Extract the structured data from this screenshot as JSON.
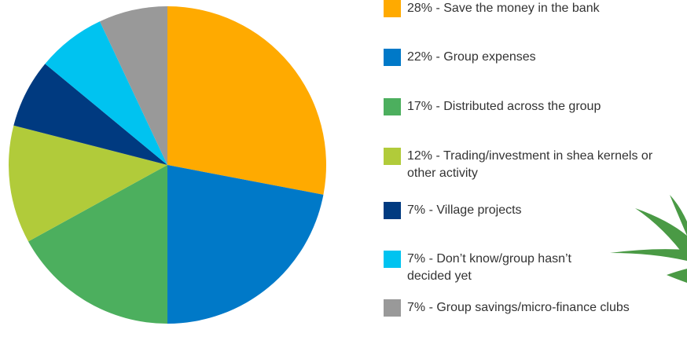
{
  "chart_data": {
    "type": "pie",
    "categories": [
      "28% - Save the money in the bank",
      "22% - Group expenses",
      "17% - Distributed across the group",
      "12% - Trading/investment in shea kernels or other activity",
      "7% - Village projects",
      "7% - Don’t know/group hasn’t decided yet",
      "7% - Group savings/micro-finance clubs"
    ],
    "values": [
      28,
      22,
      17,
      12,
      7,
      7,
      7
    ],
    "colors": [
      "#ffaa00",
      "#0079c8",
      "#4caf5e",
      "#b1cb3a",
      "#003a80",
      "#00c3f0",
      "#999999"
    ]
  }
}
